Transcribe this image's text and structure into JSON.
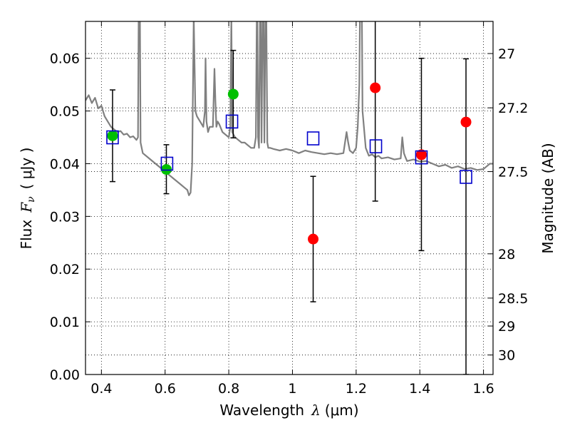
{
  "chart_data": {
    "type": "scatter",
    "xlabel": {
      "prefix": "Wavelength",
      "symbol": "λ",
      "unit": "(μm)"
    },
    "ylabel": {
      "prefix": "Flux",
      "symbol": "F",
      "subscript": "ν",
      "unit": "( μJy )"
    },
    "ylabel_right": "Magnitude (AB)",
    "xlim": [
      0.35,
      1.63
    ],
    "ylim": [
      0.0,
      0.067
    ],
    "grid": true,
    "x_ticks": [
      {
        "value": 0.4,
        "label": "0.4"
      },
      {
        "value": 0.6,
        "label": "0.6"
      },
      {
        "value": 0.8,
        "label": "0.8"
      },
      {
        "value": 1.0,
        "label": "1"
      },
      {
        "value": 1.2,
        "label": "1.2"
      },
      {
        "value": 1.4,
        "label": "1.4"
      },
      {
        "value": 1.6,
        "label": "1.6"
      }
    ],
    "y_ticks": [
      {
        "value": 0.0,
        "label": "0.00"
      },
      {
        "value": 0.01,
        "label": "0.01"
      },
      {
        "value": 0.02,
        "label": "0.02"
      },
      {
        "value": 0.03,
        "label": "0.03"
      },
      {
        "value": 0.04,
        "label": "0.04"
      },
      {
        "value": 0.05,
        "label": "0.05"
      },
      {
        "value": 0.06,
        "label": "0.06"
      }
    ],
    "right_ticks": [
      {
        "flux": 0.0609,
        "label": "27"
      },
      {
        "flux": 0.0506,
        "label": "27.2"
      },
      {
        "flux": 0.0385,
        "label": "27.5"
      },
      {
        "flux": 0.0229,
        "label": "28"
      },
      {
        "flux": 0.0145,
        "label": "28.5"
      },
      {
        "flux": 0.0092,
        "label": "29"
      },
      {
        "flux": 0.0037,
        "label": "30"
      }
    ],
    "spectrum": {
      "color": "#808080",
      "x": [
        0.35,
        0.36,
        0.37,
        0.38,
        0.39,
        0.4,
        0.41,
        0.42,
        0.43,
        0.44,
        0.45,
        0.46,
        0.47,
        0.48,
        0.49,
        0.5,
        0.51,
        0.515,
        0.517,
        0.519,
        0.521,
        0.523,
        0.53,
        0.55,
        0.57,
        0.59,
        0.61,
        0.63,
        0.65,
        0.66,
        0.67,
        0.675,
        0.68,
        0.685,
        0.69,
        0.695,
        0.7,
        0.71,
        0.72,
        0.725,
        0.727,
        0.73,
        0.735,
        0.74,
        0.75,
        0.755,
        0.758,
        0.761,
        0.765,
        0.77,
        0.78,
        0.79,
        0.8,
        0.805,
        0.808,
        0.811,
        0.815,
        0.82,
        0.83,
        0.84,
        0.85,
        0.86,
        0.87,
        0.88,
        0.885,
        0.888,
        0.89,
        0.892,
        0.895,
        0.898,
        0.9,
        0.903,
        0.906,
        0.909,
        0.912,
        0.915,
        0.918,
        0.921,
        0.924,
        0.927,
        0.93,
        0.94,
        0.96,
        0.98,
        1.0,
        1.02,
        1.04,
        1.06,
        1.08,
        1.1,
        1.12,
        1.14,
        1.16,
        1.17,
        1.175,
        1.18,
        1.19,
        1.2,
        1.205,
        1.21,
        1.212,
        1.215,
        1.218,
        1.22,
        1.23,
        1.24,
        1.25,
        1.26,
        1.27,
        1.28,
        1.3,
        1.32,
        1.34,
        1.345,
        1.35,
        1.355,
        1.36,
        1.38,
        1.4,
        1.42,
        1.44,
        1.46,
        1.48,
        1.5,
        1.52,
        1.54,
        1.56,
        1.58,
        1.6,
        1.61,
        1.62,
        1.63
      ],
      "y": [
        0.052,
        0.053,
        0.0515,
        0.0525,
        0.0505,
        0.051,
        0.049,
        0.048,
        0.047,
        0.0465,
        0.046,
        0.0462,
        0.0455,
        0.0457,
        0.045,
        0.0452,
        0.0445,
        0.045,
        0.068,
        0.068,
        0.068,
        0.044,
        0.042,
        0.041,
        0.04,
        0.039,
        0.038,
        0.037,
        0.036,
        0.0355,
        0.035,
        0.034,
        0.0345,
        0.04,
        0.068,
        0.05,
        0.049,
        0.048,
        0.047,
        0.05,
        0.06,
        0.048,
        0.046,
        0.047,
        0.047,
        0.058,
        0.052,
        0.047,
        0.048,
        0.0475,
        0.046,
        0.0455,
        0.045,
        0.047,
        0.068,
        0.046,
        0.0455,
        0.045,
        0.0445,
        0.044,
        0.044,
        0.0435,
        0.043,
        0.043,
        0.045,
        0.068,
        0.068,
        0.045,
        0.043,
        0.068,
        0.068,
        0.044,
        0.068,
        0.068,
        0.044,
        0.068,
        0.068,
        0.044,
        0.043,
        0.043,
        0.043,
        0.0428,
        0.0425,
        0.0428,
        0.0425,
        0.042,
        0.0425,
        0.0422,
        0.042,
        0.0418,
        0.042,
        0.0418,
        0.042,
        0.046,
        0.044,
        0.0425,
        0.042,
        0.043,
        0.047,
        0.055,
        0.068,
        0.068,
        0.068,
        0.05,
        0.043,
        0.0415,
        0.0418,
        0.0412,
        0.0415,
        0.041,
        0.0412,
        0.0408,
        0.041,
        0.045,
        0.042,
        0.0412,
        0.0405,
        0.0408,
        0.0404,
        0.0405,
        0.04,
        0.0395,
        0.0398,
        0.0392,
        0.0395,
        0.039,
        0.0392,
        0.0388,
        0.039,
        0.0395,
        0.04,
        0.04
      ]
    },
    "series": [
      {
        "marker": "circle",
        "color": "#00bf00",
        "points": [
          {
            "x": 0.435,
            "y": 0.0453,
            "yerr_low": 0.0366,
            "yerr_high": 0.054
          },
          {
            "x": 0.604,
            "y": 0.0389,
            "yerr_low": 0.0343,
            "yerr_high": 0.0436
          },
          {
            "x": 0.814,
            "y": 0.0532,
            "yerr_low": 0.0449,
            "yerr_high": 0.0615
          }
        ]
      },
      {
        "marker": "circle",
        "color": "#ff0000",
        "points": [
          {
            "x": 1.065,
            "y": 0.0257,
            "yerr_low": 0.0138,
            "yerr_high": 0.0376
          },
          {
            "x": 1.26,
            "y": 0.0544,
            "yerr_low": 0.0329,
            "yerr_high": 0.068
          },
          {
            "x": 1.405,
            "y": 0.0417,
            "yerr_low": 0.0235,
            "yerr_high": 0.06
          },
          {
            "x": 1.545,
            "y": 0.0479,
            "yerr_low": 0.0,
            "yerr_high": 0.0599
          }
        ]
      },
      {
        "marker": "square-open",
        "color": "#0000cc",
        "points": [
          {
            "x": 0.435,
            "y": 0.045
          },
          {
            "x": 0.606,
            "y": 0.04
          },
          {
            "x": 0.81,
            "y": 0.048
          },
          {
            "x": 1.065,
            "y": 0.0448
          },
          {
            "x": 1.262,
            "y": 0.0433
          },
          {
            "x": 1.405,
            "y": 0.0412
          },
          {
            "x": 1.545,
            "y": 0.0375
          }
        ]
      }
    ]
  }
}
